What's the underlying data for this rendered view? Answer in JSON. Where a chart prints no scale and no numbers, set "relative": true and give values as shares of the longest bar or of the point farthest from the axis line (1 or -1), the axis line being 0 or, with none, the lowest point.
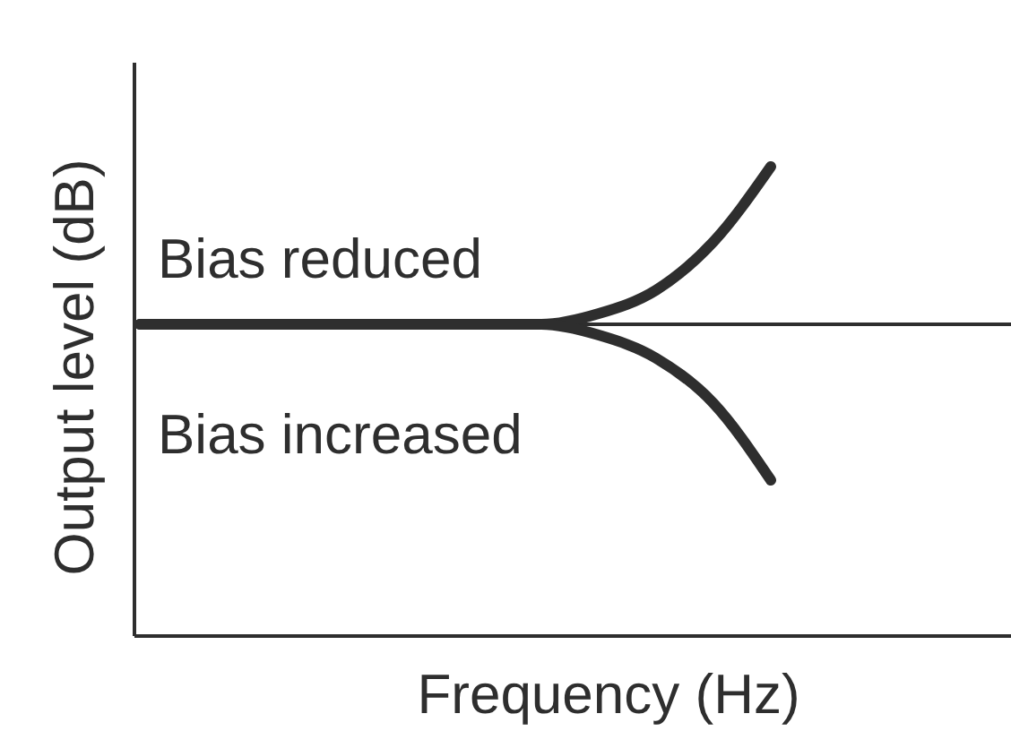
{
  "chart_data": {
    "type": "line",
    "relative": true,
    "xlabel": "Frequency (Hz)",
    "ylabel": "Output level (dB)",
    "categories": [
      null,
      null,
      null,
      null,
      null,
      null,
      null,
      null,
      null,
      null,
      null,
      null,
      null,
      null,
      null,
      null
    ],
    "series": [
      {
        "name": "Bias reduced",
        "color": "#2e2e2e",
        "values": [
          0.664,
          0.664,
          0.664,
          0.664,
          0.664,
          0.664,
          0.664,
          0.664,
          0.687,
          0.737,
          0.84,
          1.0,
          null,
          null,
          null,
          null
        ]
      },
      {
        "name": "Bias increased",
        "color": "#2e2e2e",
        "values": [
          0.664,
          0.664,
          0.664,
          0.664,
          0.664,
          0.664,
          0.664,
          0.664,
          0.641,
          0.592,
          0.496,
          0.332,
          null,
          null,
          null,
          null
        ]
      }
    ],
    "ref_lines": [
      {
        "axis": "y",
        "value": 0.664,
        "color": "#2e2e2e"
      }
    ],
    "grid": false,
    "legend": false,
    "marker": "none",
    "line_style": "solid"
  }
}
